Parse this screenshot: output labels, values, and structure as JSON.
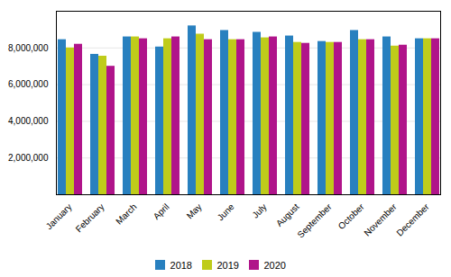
{
  "chart_data": {
    "type": "bar",
    "categories": [
      "January",
      "February",
      "March",
      "April",
      "May",
      "June",
      "July",
      "August",
      "September",
      "October",
      "November",
      "December"
    ],
    "series": [
      {
        "name": "2018",
        "color": "#2880BF",
        "values": [
          8450000,
          7650000,
          8600000,
          8050000,
          9200000,
          8950000,
          8850000,
          8650000,
          8350000,
          8950000,
          8600000,
          8500000
        ]
      },
      {
        "name": "2019",
        "color": "#BFCC1A",
        "values": [
          8000000,
          7550000,
          8600000,
          8500000,
          8750000,
          8450000,
          8550000,
          8300000,
          8300000,
          8450000,
          8100000,
          8500000
        ]
      },
      {
        "name": "2020",
        "color": "#B0148A",
        "values": [
          8200000,
          7000000,
          8500000,
          8600000,
          8450000,
          8450000,
          8600000,
          8250000,
          8300000,
          8450000,
          8150000,
          8500000
        ]
      }
    ],
    "ylim": [
      0,
      10000000
    ],
    "yticks": [
      {
        "value": 2000000,
        "label": "2,000,000"
      },
      {
        "value": 4000000,
        "label": "4,000,000"
      },
      {
        "value": 6000000,
        "label": "6,000,000"
      },
      {
        "value": 8000000,
        "label": "8,000,000"
      }
    ],
    "grid": true,
    "legend": "bottom"
  }
}
